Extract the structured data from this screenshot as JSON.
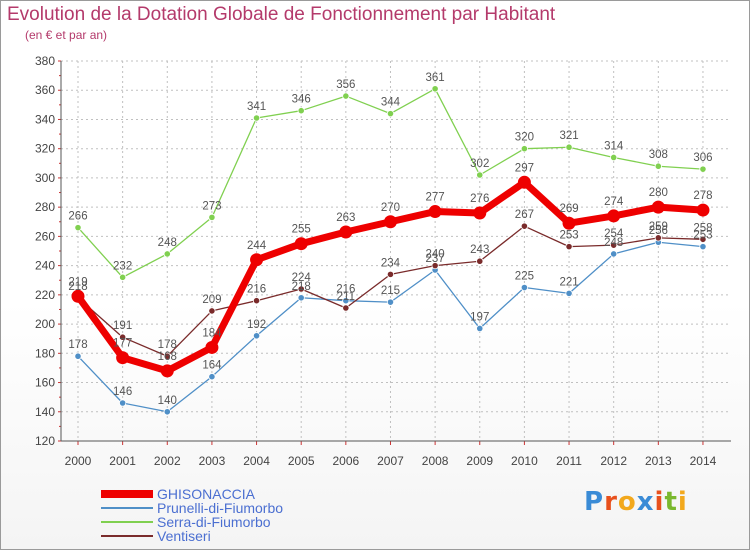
{
  "header": {
    "title": "Evolution de la Dotation Globale de Fonctionnement par Habitant",
    "subtitle": "(en € et par an)"
  },
  "colors": {
    "title": "#b43a6b",
    "axis": "#555555",
    "grid": "#c0c0c0",
    "tick_label": "#444444",
    "value_label": "#555555",
    "legend_text": "#4b6fd1"
  },
  "logo": {
    "letters": [
      "P",
      "r",
      "o",
      "x",
      "i",
      "t",
      "i"
    ],
    "colors": [
      "#3a8bd6",
      "#e8501c",
      "#f2a81c",
      "#3a8bd6",
      "#e8501c",
      "#7ab82e",
      "#f2a81c"
    ]
  },
  "chart_data": {
    "type": "line",
    "title": "Evolution de la Dotation Globale de Fonctionnement par Habitant",
    "subtitle": "(en € et par an)",
    "xlabel": "",
    "ylabel": "",
    "ylim": [
      120,
      380
    ],
    "ytick_step": 20,
    "grid": true,
    "legend_position": "bottom-left",
    "x": [
      "2000",
      "2001",
      "2002",
      "2003",
      "2004",
      "2005",
      "2006",
      "2007",
      "2008",
      "2009",
      "2010",
      "2011",
      "2012",
      "2013",
      "2014"
    ],
    "series": [
      {
        "name": "GHISONACCIA",
        "color": "#ee0000",
        "emphasis": true,
        "values": [
          219,
          177,
          168,
          184,
          244,
          255,
          263,
          270,
          277,
          276,
          297,
          269,
          274,
          280,
          278
        ]
      },
      {
        "name": "Prunelli-di-Fiumorbo",
        "color": "#4f8fc7",
        "emphasis": false,
        "values": [
          178,
          146,
          140,
          164,
          192,
          218,
          216,
          215,
          237,
          197,
          225,
          221,
          248,
          256,
          253
        ]
      },
      {
        "name": "Serra-di-Fiumorbo",
        "color": "#80d050",
        "emphasis": false,
        "values": [
          266,
          232,
          248,
          273,
          341,
          346,
          356,
          344,
          361,
          302,
          320,
          321,
          314,
          308,
          306
        ]
      },
      {
        "name": "Ventiseri",
        "color": "#7a2b2b",
        "emphasis": false,
        "values": [
          218,
          191,
          178,
          209,
          216,
          224,
          211,
          234,
          240,
          243,
          267,
          253,
          254,
          259,
          258
        ]
      }
    ]
  }
}
